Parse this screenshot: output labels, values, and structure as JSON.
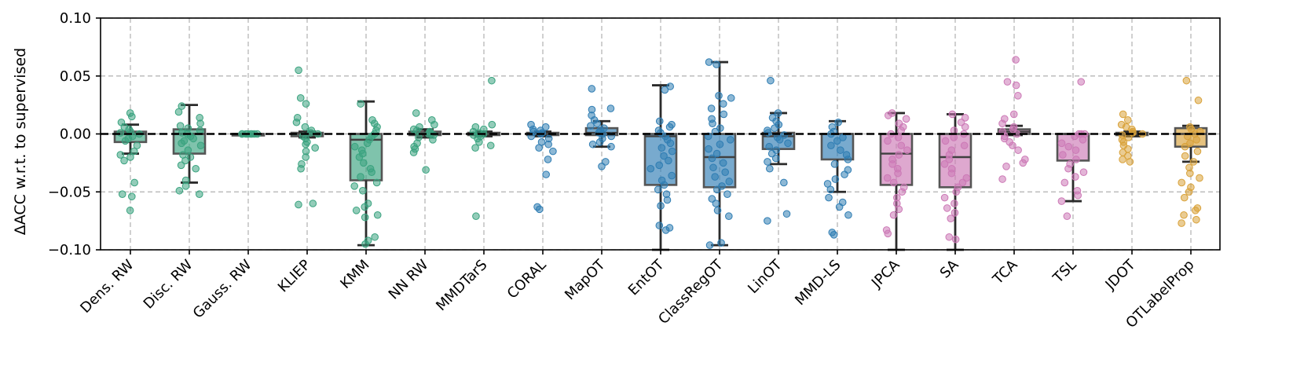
{
  "chart_data": {
    "type": "box",
    "title": "",
    "xlabel": "",
    "ylabel": "ΔACC w.r.t. to supervised",
    "ylim": [
      -0.1,
      0.1
    ],
    "yticks": [
      -0.1,
      -0.05,
      0.0,
      0.05,
      0.1
    ],
    "ytick_labels": [
      "−0.10",
      "−0.05",
      "0.00",
      "0.05",
      "0.10"
    ],
    "grid": true,
    "reference_line": 0.0,
    "colors": {
      "reweighting": "#3aa37f",
      "mapping": "#2f7db3",
      "subspace": "#cc79b6",
      "other": "#d9a23a"
    },
    "categories": [
      {
        "label": "Dens. RW",
        "group": "reweighting",
        "q1": -0.007,
        "median": 0.0,
        "q3": 0.002,
        "whislo": -0.017,
        "whishi": 0.008,
        "points": [
          0.018,
          0.015,
          0.01,
          0.006,
          0.004,
          0.002,
          0.001,
          0.0,
          -0.002,
          -0.004,
          -0.006,
          -0.01,
          -0.015,
          -0.018,
          -0.02,
          -0.023,
          -0.042,
          -0.052,
          -0.054,
          -0.066
        ]
      },
      {
        "label": "Disc. RW",
        "group": "reweighting",
        "q1": -0.017,
        "median": 0.0,
        "q3": 0.004,
        "whislo": -0.042,
        "whishi": 0.025,
        "points": [
          0.024,
          0.019,
          0.014,
          0.009,
          0.007,
          0.005,
          0.003,
          0.001,
          0.0,
          -0.002,
          -0.004,
          -0.006,
          -0.008,
          -0.01,
          -0.014,
          -0.018,
          -0.02,
          -0.023,
          -0.027,
          -0.03,
          -0.04,
          -0.045,
          -0.049,
          -0.052
        ]
      },
      {
        "label": "Gauss. RW",
        "group": "reweighting",
        "q1": 0.0,
        "median": 0.0,
        "q3": 0.0,
        "whislo": 0.0,
        "whishi": 0.0,
        "points": [
          0.0,
          0.0,
          0.0,
          0.0,
          0.0,
          0.0,
          0.0,
          0.0
        ]
      },
      {
        "label": "KLIEP",
        "group": "reweighting",
        "q1": -0.002,
        "median": 0.0,
        "q3": 0.001,
        "whislo": -0.003,
        "whishi": 0.002,
        "points": [
          0.055,
          0.031,
          0.026,
          0.014,
          0.01,
          0.006,
          0.003,
          0.001,
          0.0,
          -0.002,
          -0.004,
          -0.007,
          -0.009,
          -0.012,
          -0.015,
          -0.02,
          -0.026,
          -0.03,
          -0.06,
          -0.061
        ]
      },
      {
        "label": "KMM",
        "group": "reweighting",
        "q1": -0.04,
        "median": -0.005,
        "q3": 0.0,
        "whislo": -0.096,
        "whishi": 0.028,
        "points": [
          0.026,
          0.012,
          0.009,
          0.006,
          0.003,
          0.0,
          -0.002,
          -0.005,
          -0.008,
          -0.011,
          -0.014,
          -0.017,
          -0.02,
          -0.025,
          -0.03,
          -0.033,
          -0.037,
          -0.042,
          -0.045,
          -0.049,
          -0.06,
          -0.063,
          -0.066,
          -0.07,
          -0.072,
          -0.089,
          -0.092,
          -0.095
        ]
      },
      {
        "label": "NN RW",
        "group": "reweighting",
        "q1": -0.001,
        "median": 0.0,
        "q3": 0.002,
        "whislo": -0.003,
        "whishi": 0.004,
        "points": [
          0.018,
          0.012,
          0.008,
          0.006,
          0.004,
          0.003,
          0.002,
          0.001,
          0.0,
          -0.001,
          -0.003,
          -0.005,
          -0.008,
          -0.011,
          -0.013,
          -0.016,
          -0.031
        ]
      },
      {
        "label": "MMDTarS",
        "group": "reweighting",
        "q1": -0.001,
        "median": 0.0,
        "q3": 0.001,
        "whislo": -0.002,
        "whishi": 0.002,
        "points": [
          0.046,
          0.008,
          0.006,
          0.004,
          0.002,
          0.001,
          0.0,
          -0.001,
          -0.002,
          -0.004,
          -0.007,
          -0.01,
          -0.012,
          -0.071
        ]
      },
      {
        "label": "CORAL",
        "group": "mapping",
        "q1": -0.001,
        "median": 0.0,
        "q3": 0.001,
        "whislo": -0.002,
        "whishi": 0.002,
        "points": [
          0.008,
          0.006,
          0.004,
          0.003,
          0.002,
          0.001,
          0.0,
          -0.002,
          -0.004,
          -0.007,
          -0.009,
          -0.012,
          -0.015,
          -0.022,
          -0.035,
          -0.063,
          -0.065
        ]
      },
      {
        "label": "MapOT",
        "group": "mapping",
        "q1": -0.001,
        "median": 0.001,
        "q3": 0.005,
        "whislo": -0.011,
        "whishi": 0.011,
        "points": [
          0.039,
          0.022,
          0.021,
          0.016,
          0.012,
          0.009,
          0.007,
          0.005,
          0.003,
          0.001,
          0.0,
          -0.002,
          -0.004,
          -0.007,
          -0.009,
          -0.011,
          -0.024,
          -0.028
        ]
      },
      {
        "label": "EntOT",
        "group": "mapping",
        "q1": -0.044,
        "median": -0.002,
        "q3": 0.0,
        "whislo": -0.1,
        "whishi": 0.042,
        "points": [
          0.041,
          0.038,
          0.011,
          0.008,
          0.006,
          0.003,
          0.001,
          -0.002,
          -0.005,
          -0.008,
          -0.012,
          -0.015,
          -0.019,
          -0.023,
          -0.027,
          -0.03,
          -0.036,
          -0.04,
          -0.044,
          -0.048,
          -0.052,
          -0.057,
          -0.062,
          -0.079,
          -0.081,
          -0.083
        ]
      },
      {
        "label": "ClassRegOT",
        "group": "mapping",
        "q1": -0.046,
        "median": -0.02,
        "q3": 0.0,
        "whislo": -0.096,
        "whishi": 0.062,
        "points": [
          0.062,
          0.06,
          0.033,
          0.031,
          0.026,
          0.022,
          0.017,
          0.013,
          0.009,
          0.005,
          0.002,
          -0.002,
          -0.005,
          -0.009,
          -0.013,
          -0.017,
          -0.021,
          -0.025,
          -0.029,
          -0.033,
          -0.037,
          -0.041,
          -0.045,
          -0.048,
          -0.052,
          -0.056,
          -0.06,
          -0.066,
          -0.071,
          -0.094,
          -0.096
        ]
      },
      {
        "label": "LinOT",
        "group": "mapping",
        "q1": -0.013,
        "median": -0.002,
        "q3": 0.001,
        "whislo": -0.026,
        "whishi": 0.018,
        "points": [
          0.046,
          0.018,
          0.014,
          0.011,
          0.008,
          0.005,
          0.003,
          0.001,
          -0.001,
          -0.003,
          -0.005,
          -0.008,
          -0.011,
          -0.014,
          -0.017,
          -0.021,
          -0.024,
          -0.03,
          -0.042,
          -0.069,
          -0.075
        ]
      },
      {
        "label": "MMD-LS",
        "group": "mapping",
        "q1": -0.022,
        "median": 0.0,
        "q3": 0.0,
        "whislo": -0.05,
        "whishi": 0.011,
        "points": [
          0.01,
          0.006,
          0.002,
          0.0,
          -0.003,
          -0.006,
          -0.01,
          -0.014,
          -0.018,
          -0.022,
          -0.026,
          -0.031,
          -0.035,
          -0.039,
          -0.043,
          -0.048,
          -0.055,
          -0.059,
          -0.063,
          -0.07,
          -0.085,
          -0.087
        ]
      },
      {
        "label": "JPCA",
        "group": "subspace",
        "q1": -0.044,
        "median": -0.017,
        "q3": 0.0,
        "whislo": -0.1,
        "whishi": 0.018,
        "points": [
          0.018,
          0.016,
          0.013,
          0.009,
          0.006,
          0.003,
          0.0,
          -0.003,
          -0.006,
          -0.01,
          -0.014,
          -0.018,
          -0.022,
          -0.026,
          -0.03,
          -0.034,
          -0.038,
          -0.042,
          -0.046,
          -0.05,
          -0.055,
          -0.06,
          -0.065,
          -0.07,
          -0.083,
          -0.086
        ]
      },
      {
        "label": "SA",
        "group": "subspace",
        "q1": -0.046,
        "median": -0.02,
        "q3": 0.0,
        "whislo": -0.1,
        "whishi": 0.017,
        "points": [
          0.017,
          0.014,
          0.01,
          0.006,
          0.003,
          0.0,
          -0.003,
          -0.006,
          -0.01,
          -0.014,
          -0.018,
          -0.022,
          -0.026,
          -0.03,
          -0.034,
          -0.038,
          -0.042,
          -0.046,
          -0.05,
          -0.055,
          -0.06,
          -0.064,
          -0.068,
          -0.073,
          -0.089,
          -0.091
        ]
      },
      {
        "label": "TCA",
        "group": "subspace",
        "q1": 0.0,
        "median": 0.002,
        "q3": 0.004,
        "whislo": -0.001,
        "whishi": 0.007,
        "points": [
          0.064,
          0.045,
          0.042,
          0.033,
          0.017,
          0.013,
          0.009,
          0.006,
          0.004,
          0.002,
          0.0,
          -0.002,
          -0.004,
          -0.007,
          -0.01,
          -0.014,
          -0.022,
          -0.025,
          -0.028,
          -0.039
        ]
      },
      {
        "label": "TSL",
        "group": "subspace",
        "q1": -0.023,
        "median": 0.0,
        "q3": 0.0,
        "whislo": -0.058,
        "whishi": 0.0,
        "points": [
          0.045,
          0.0,
          0.0,
          0.0,
          -0.002,
          -0.005,
          -0.008,
          -0.011,
          -0.014,
          -0.018,
          -0.022,
          -0.026,
          -0.03,
          -0.033,
          -0.037,
          -0.042,
          -0.049,
          -0.053,
          -0.058,
          -0.071
        ]
      },
      {
        "label": "JDOT",
        "group": "other",
        "q1": -0.001,
        "median": 0.0,
        "q3": 0.001,
        "whislo": -0.002,
        "whishi": 0.002,
        "points": [
          0.017,
          0.012,
          0.008,
          0.006,
          0.004,
          0.002,
          0.001,
          0.0,
          -0.001,
          -0.003,
          -0.005,
          -0.007,
          -0.01,
          -0.013,
          -0.016,
          -0.019,
          -0.022,
          -0.024
        ]
      },
      {
        "label": "OTLabelProp",
        "group": "other",
        "q1": -0.011,
        "median": 0.0,
        "q3": 0.005,
        "whislo": -0.024,
        "whishi": 0.007,
        "points": [
          0.046,
          0.029,
          0.006,
          0.004,
          0.002,
          0.0,
          -0.002,
          -0.005,
          -0.008,
          -0.011,
          -0.015,
          -0.019,
          -0.024,
          -0.029,
          -0.034,
          -0.038,
          -0.042,
          -0.046,
          -0.05,
          -0.055,
          -0.064,
          -0.066,
          -0.07,
          -0.074,
          -0.077
        ]
      }
    ]
  }
}
